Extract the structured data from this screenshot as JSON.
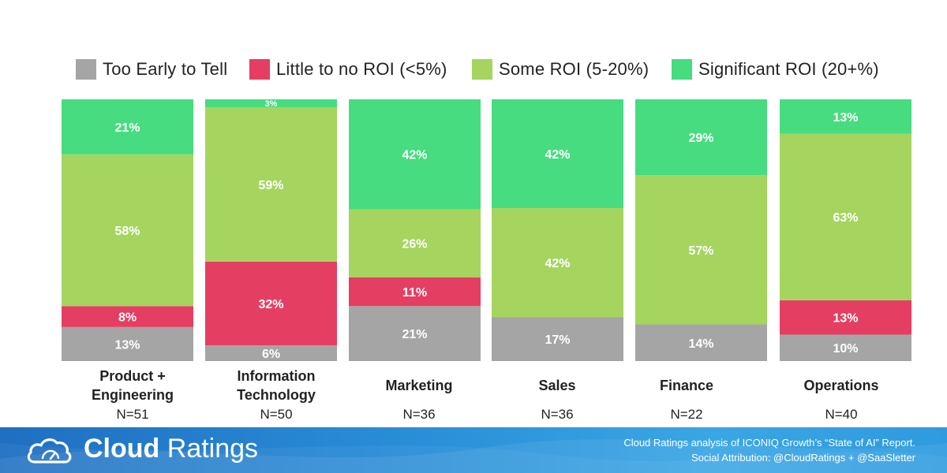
{
  "chart_data": {
    "type": "bar",
    "stacked": true,
    "normalized": true,
    "categories": [
      [
        "Product +",
        "Engineering"
      ],
      [
        "Information",
        "Technology"
      ],
      [
        "Marketing"
      ],
      [
        "Sales"
      ],
      [
        "Finance"
      ],
      [
        "Operations"
      ]
    ],
    "sample_sizes": [
      "N=51",
      "N=50",
      "N=36",
      "N=36",
      "N=22",
      "N=40"
    ],
    "series": [
      {
        "name": "Too Early to Tell",
        "color": "#a5a5a5",
        "values": [
          13,
          6,
          21,
          17,
          14,
          10
        ],
        "labels": [
          "13%",
          "6%",
          "21%",
          "17%",
          "14%",
          "10%"
        ]
      },
      {
        "name": "Little to no ROI (<5%)",
        "color": "#e53e63",
        "values": [
          8,
          32,
          11,
          0,
          0,
          13
        ],
        "labels": [
          "8%",
          "32%",
          "11%",
          "",
          "",
          "13%"
        ]
      },
      {
        "name": "Some ROI (5-20%)",
        "color": "#a5d55f",
        "values": [
          58,
          59,
          26,
          42,
          57,
          63
        ],
        "labels": [
          "58%",
          "59%",
          "26%",
          "42%",
          "57%",
          "63%"
        ]
      },
      {
        "name": "Significant ROI (20+%)",
        "color": "#46dc7f",
        "values": [
          21,
          3,
          42,
          42,
          29,
          13
        ],
        "labels": [
          "21%",
          "3%",
          "42%",
          "42%",
          "29%",
          "13%"
        ]
      }
    ],
    "legend_position": "top",
    "grid": false
  },
  "footer": {
    "brand_bold": "Cloud",
    "brand_light": "Ratings",
    "attribution_line1": "Cloud Ratings analysis of ICONIQ Growth’s “State of AI” Report.",
    "attribution_line2": "Social Attribution: @CloudRatings + @SaaSletter",
    "icon": "cloud-gauge-icon"
  }
}
